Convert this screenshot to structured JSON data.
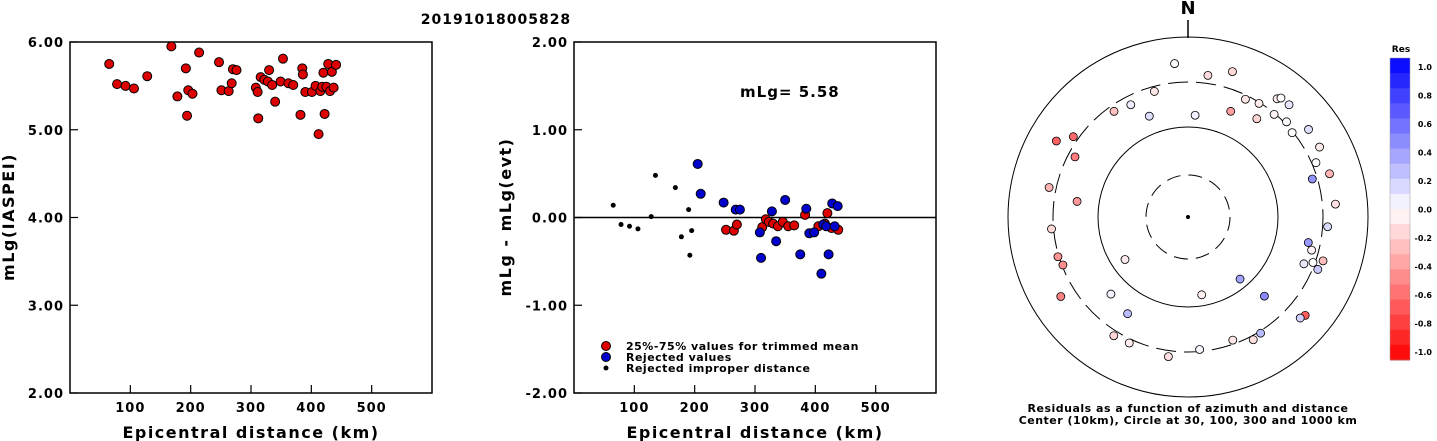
{
  "title": "20191018005828",
  "chart_data": [
    {
      "type": "scatter",
      "ylabel": "mLg(IASPEI)",
      "xlabel": "Epicentral distance (km)",
      "xlim": [
        0,
        600
      ],
      "ylim": [
        2.0,
        6.0
      ],
      "xticks": [
        "100",
        "200",
        "300",
        "400",
        "500"
      ],
      "yticks": [
        "2.00",
        "3.00",
        "4.00",
        "5.00",
        "6.00"
      ],
      "series": [
        {
          "color": "#dd0000",
          "points": [
            [
              65,
              5.75
            ],
            [
              78,
              5.52
            ],
            [
              92,
              5.5
            ],
            [
              106,
              5.47
            ],
            [
              128,
              5.61
            ],
            [
              168,
              5.95
            ],
            [
              178,
              5.38
            ],
            [
              192,
              5.7
            ],
            [
              194,
              5.16
            ],
            [
              196,
              5.45
            ],
            [
              203,
              5.41
            ],
            [
              214,
              5.88
            ],
            [
              247,
              5.77
            ],
            [
              251,
              5.45
            ],
            [
              263,
              5.44
            ],
            [
              268,
              5.53
            ],
            [
              270,
              5.69
            ],
            [
              276,
              5.68
            ],
            [
              308,
              5.48
            ],
            [
              311,
              5.43
            ],
            [
              312,
              5.13
            ],
            [
              316,
              5.6
            ],
            [
              322,
              5.57
            ],
            [
              328,
              5.55
            ],
            [
              330,
              5.68
            ],
            [
              335,
              5.51
            ],
            [
              340,
              5.32
            ],
            [
              349,
              5.55
            ],
            [
              353,
              5.81
            ],
            [
              362,
              5.53
            ],
            [
              370,
              5.51
            ],
            [
              382,
              5.17
            ],
            [
              385,
              5.7
            ],
            [
              386,
              5.63
            ],
            [
              390,
              5.43
            ],
            [
              401,
              5.43
            ],
            [
              407,
              5.5
            ],
            [
              412,
              4.95
            ],
            [
              415,
              5.44
            ],
            [
              418,
              5.49
            ],
            [
              420,
              5.65
            ],
            [
              422,
              5.18
            ],
            [
              425,
              5.49
            ],
            [
              428,
              5.75
            ],
            [
              431,
              5.44
            ],
            [
              434,
              5.66
            ],
            [
              437,
              5.48
            ],
            [
              441,
              5.74
            ]
          ]
        }
      ]
    },
    {
      "type": "scatter",
      "ylabel": "mLg - mLg(evt)",
      "xlabel": "Epicentral distance (km)",
      "xlim": [
        0,
        600
      ],
      "ylim": [
        -2.0,
        2.0
      ],
      "xticks": [
        "100",
        "200",
        "300",
        "400",
        "500"
      ],
      "yticks": [
        "-2.00",
        "-1.00",
        "0.00",
        "1.00",
        "2.00"
      ],
      "annotation": "mLg= 5.58",
      "series": [
        {
          "name": "25%-75% values for trimmed mean",
          "color": "#dd0000",
          "points": [
            [
              252,
              -0.14
            ],
            [
              265,
              -0.15
            ],
            [
              270,
              -0.08
            ],
            [
              312,
              -0.11
            ],
            [
              318,
              -0.02
            ],
            [
              323,
              -0.05
            ],
            [
              330,
              -0.07
            ],
            [
              338,
              -0.1
            ],
            [
              346,
              -0.05
            ],
            [
              355,
              -0.1
            ],
            [
              365,
              -0.09
            ],
            [
              383,
              0.03
            ],
            [
              405,
              -0.1
            ],
            [
              416,
              -0.07
            ],
            [
              420,
              0.05
            ],
            [
              427,
              -0.12
            ],
            [
              438,
              -0.14
            ]
          ]
        },
        {
          "name": "Rejected values",
          "color": "#0000cc",
          "points": [
            [
              205,
              0.61
            ],
            [
              210,
              0.27
            ],
            [
              248,
              0.17
            ],
            [
              268,
              0.09
            ],
            [
              275,
              0.09
            ],
            [
              308,
              -0.17
            ],
            [
              310,
              -0.46
            ],
            [
              328,
              0.07
            ],
            [
              335,
              -0.27
            ],
            [
              350,
              0.2
            ],
            [
              375,
              -0.42
            ],
            [
              385,
              0.1
            ],
            [
              390,
              -0.18
            ],
            [
              398,
              -0.17
            ],
            [
              410,
              -0.64
            ],
            [
              413,
              -0.08
            ],
            [
              418,
              -0.1
            ],
            [
              422,
              -0.42
            ],
            [
              428,
              0.16
            ],
            [
              432,
              -0.1
            ],
            [
              437,
              0.13
            ]
          ]
        },
        {
          "name": "Rejected improper distance",
          "color": "#000000",
          "points": [
            [
              65,
              0.14
            ],
            [
              78,
              -0.08
            ],
            [
              92,
              -0.1
            ],
            [
              106,
              -0.13
            ],
            [
              128,
              0.01
            ],
            [
              135,
              0.48
            ],
            [
              168,
              0.34
            ],
            [
              178,
              -0.22
            ],
            [
              190,
              0.09
            ],
            [
              192,
              -0.43
            ],
            [
              195,
              -0.15
            ]
          ]
        }
      ]
    },
    {
      "type": "scatter",
      "title": "N",
      "caption_line1": "Residuals as a function of azimuth and distance",
      "caption_line2": "Center (10km), Circle at 30, 100, 300 and 1000 km",
      "colorbar_title": "Res",
      "colorbar_labels": [
        "1.0",
        "0.8",
        "0.6",
        "0.4",
        "0.2",
        "0.0",
        "-0.2",
        "-0.4",
        "-0.6",
        "-0.8",
        "-1.0"
      ],
      "points": [
        {
          "az": 355,
          "r": 154,
          "res": -0.02
        },
        {
          "az": 8,
          "r": 143,
          "res": -0.14
        },
        {
          "az": 17,
          "r": 152,
          "res": -0.15
        },
        {
          "az": 26,
          "r": 131,
          "res": -0.1
        },
        {
          "az": 32,
          "r": 134,
          "res": -0.07
        },
        {
          "az": 35,
          "r": 120,
          "res": -0.17
        },
        {
          "az": 37,
          "r": 148,
          "res": -0.07
        },
        {
          "az": 38,
          "r": 151,
          "res": 0.0
        },
        {
          "az": 40,
          "r": 134,
          "res": -0.05
        },
        {
          "az": 42,
          "r": 151,
          "res": 0.1
        },
        {
          "az": 46,
          "r": 137,
          "res": 0.02
        },
        {
          "az": 51,
          "r": 134,
          "res": 0.0
        },
        {
          "az": 54,
          "r": 149,
          "res": 0.13
        },
        {
          "az": 62,
          "r": 149,
          "res": -0.07
        },
        {
          "az": 67,
          "r": 139,
          "res": 0.0
        },
        {
          "az": 73,
          "r": 148,
          "res": -0.29
        },
        {
          "az": 73,
          "r": 130,
          "res": 0.42
        },
        {
          "az": 85,
          "r": 148,
          "res": -0.12
        },
        {
          "az": 94,
          "r": 140,
          "res": 0.14
        },
        {
          "az": 102,
          "r": 123,
          "res": 0.4
        },
        {
          "az": 105,
          "r": 128,
          "res": -0.05
        },
        {
          "az": 108,
          "r": 142,
          "res": -0.26
        },
        {
          "az": 110,
          "r": 133,
          "res": 0.0
        },
        {
          "az": 112,
          "r": 140,
          "res": 0.21
        },
        {
          "az": 112,
          "r": 125,
          "res": 0.1
        },
        {
          "az": 130,
          "r": 153,
          "res": -0.64
        },
        {
          "az": 132,
          "r": 151,
          "res": 0.18
        },
        {
          "az": 136,
          "r": 110,
          "res": 0.46
        },
        {
          "az": 148,
          "r": 137,
          "res": 0.27
        },
        {
          "az": 152,
          "r": 139,
          "res": -0.12
        },
        {
          "az": 160,
          "r": 131,
          "res": -0.1
        },
        {
          "az": 170,
          "r": 79,
          "res": -0.06
        },
        {
          "az": 175,
          "r": 133,
          "res": 0.03
        },
        {
          "az": 188,
          "r": 141,
          "res": -0.12
        },
        {
          "az": 205,
          "r": 139,
          "res": -0.07
        },
        {
          "az": 212,
          "r": 114,
          "res": 0.27
        },
        {
          "az": 212,
          "r": 140,
          "res": -0.17
        },
        {
          "az": 225,
          "r": 109,
          "res": 0.05
        },
        {
          "az": 236,
          "r": 76,
          "res": -0.08
        },
        {
          "az": 238,
          "r": 150,
          "res": -0.49
        },
        {
          "az": 249,
          "r": 134,
          "res": -0.44
        },
        {
          "az": 253,
          "r": 136,
          "res": -0.42
        },
        {
          "az": 265,
          "r": 137,
          "res": -0.15
        },
        {
          "az": 278,
          "r": 112,
          "res": -0.4
        },
        {
          "az": 282,
          "r": 142,
          "res": -0.3
        },
        {
          "az": 298,
          "r": 128,
          "res": -0.51
        },
        {
          "az": 300,
          "r": 152,
          "res": -0.61
        },
        {
          "az": 305,
          "r": 140,
          "res": -0.59
        },
        {
          "az": 325,
          "r": 129,
          "res": -0.25
        },
        {
          "az": 333,
          "r": 126,
          "res": 0.07
        },
        {
          "az": 339,
          "r": 108,
          "res": 0.13
        },
        {
          "az": 345,
          "r": 130,
          "res": -0.1
        },
        {
          "az": 4,
          "r": 102,
          "res": 0.05
        },
        {
          "az": 140,
          "r": 81,
          "res": 0.36
        },
        {
          "az": 22,
          "r": 114,
          "res": -0.38
        }
      ]
    }
  ]
}
